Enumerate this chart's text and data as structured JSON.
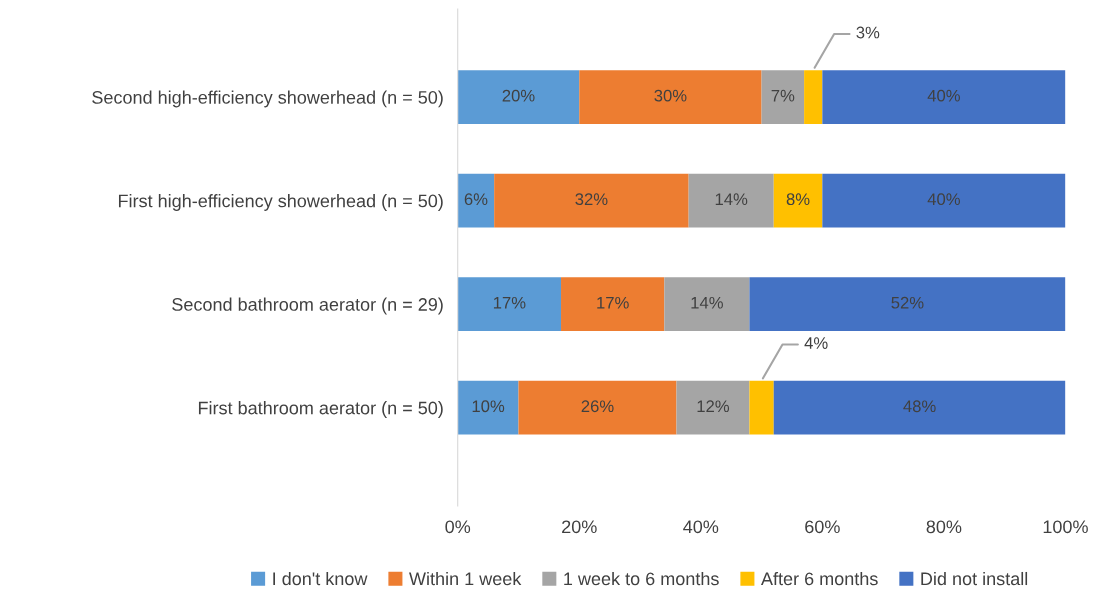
{
  "chart_data": {
    "type": "bar",
    "orientation": "horizontal",
    "stacked": true,
    "categories": [
      "Second high-efficiency showerhead (n = 50)",
      "First high-efficiency showerhead (n = 50)",
      "Second bathroom aerator (n = 29)",
      "First bathroom aerator (n = 50)"
    ],
    "series": [
      {
        "name": "I don't know",
        "color": "#5b9bd5",
        "values": [
          20,
          6,
          17,
          10
        ],
        "value_labels": [
          "20%",
          "6%",
          "17%",
          "10%"
        ]
      },
      {
        "name": "Within 1 week",
        "color": "#ed7d31",
        "values": [
          30,
          32,
          17,
          26
        ],
        "value_labels": [
          "30%",
          "32%",
          "17%",
          "26%"
        ]
      },
      {
        "name": "1 week to 6 months",
        "color": "#a5a5a5",
        "values": [
          7,
          14,
          14,
          12
        ],
        "value_labels": [
          "7%",
          "14%",
          "14%",
          "12%"
        ]
      },
      {
        "name": "After 6 months",
        "color": "#ffc000",
        "values": [
          3,
          8,
          0,
          4
        ],
        "value_labels": [
          "3%",
          "8%",
          null,
          "4%"
        ]
      },
      {
        "name": "Did not install",
        "color": "#4472c4",
        "values": [
          40,
          40,
          52,
          48
        ],
        "value_labels": [
          "40%",
          "40%",
          "52%",
          "48%"
        ]
      }
    ],
    "xlim": [
      0,
      100
    ],
    "xticks": [
      {
        "value": 0,
        "label": "0%"
      },
      {
        "value": 20,
        "label": "20%"
      },
      {
        "value": 40,
        "label": "40%"
      },
      {
        "value": 60,
        "label": "60%"
      },
      {
        "value": 80,
        "label": "80%"
      },
      {
        "value": 100,
        "label": "100%"
      }
    ],
    "grid": false,
    "legend": "bottom"
  }
}
